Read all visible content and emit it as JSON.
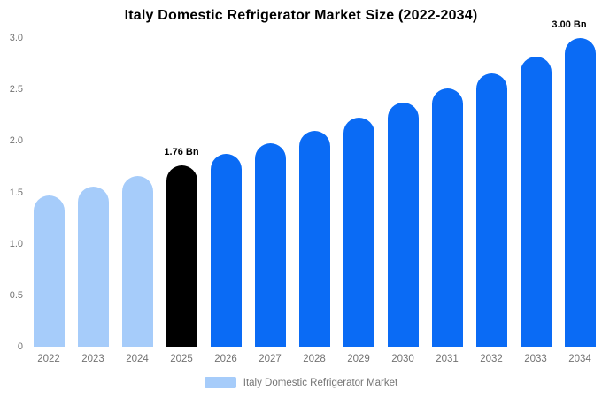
{
  "chart_data": {
    "type": "bar",
    "title": "Italy Domestic Refrigerator Market Size (2022-2034)",
    "categories": [
      "2022",
      "2023",
      "2024",
      "2025",
      "2026",
      "2027",
      "2028",
      "2029",
      "2030",
      "2031",
      "2032",
      "2033",
      "2034"
    ],
    "values": [
      1.47,
      1.56,
      1.66,
      1.76,
      1.87,
      1.98,
      2.1,
      2.23,
      2.37,
      2.51,
      2.66,
      2.82,
      3.0
    ],
    "unit": "Bn",
    "xlabel": "",
    "ylabel": "",
    "ylim": [
      0,
      3.0
    ],
    "yticks": [
      3.0,
      2.5,
      2.0,
      1.5,
      1.0,
      0.5,
      0
    ],
    "ytick_labels": [
      "3.0",
      "2.5",
      "2.0",
      "1.5",
      "1.0",
      "0.5",
      "0"
    ],
    "grid": false,
    "legend_position": "bottom",
    "series_name": "Italy Domestic Refrigerator Market",
    "bar_colors": [
      "#a6ccfa",
      "#a6ccfa",
      "#a6ccfa",
      "#000000",
      "#0a6bf5",
      "#0a6bf5",
      "#0a6bf5",
      "#0a6bf5",
      "#0a6bf5",
      "#0a6bf5",
      "#0a6bf5",
      "#0a6bf5",
      "#0a6bf5"
    ],
    "annotations": [
      {
        "category_index": 3,
        "text": "1.76 Bn"
      },
      {
        "category_index": 12,
        "text": "3.00 Bn"
      }
    ]
  },
  "colors": {
    "light_blue": "#a6ccfa",
    "primary_blue": "#0a6bf5",
    "highlight_black": "#000000",
    "axis_line": "#e0e0e0",
    "tick_text": "#737373",
    "legend_text": "#757575"
  },
  "legend": {
    "label": "Italy Domestic Refrigerator Market"
  }
}
